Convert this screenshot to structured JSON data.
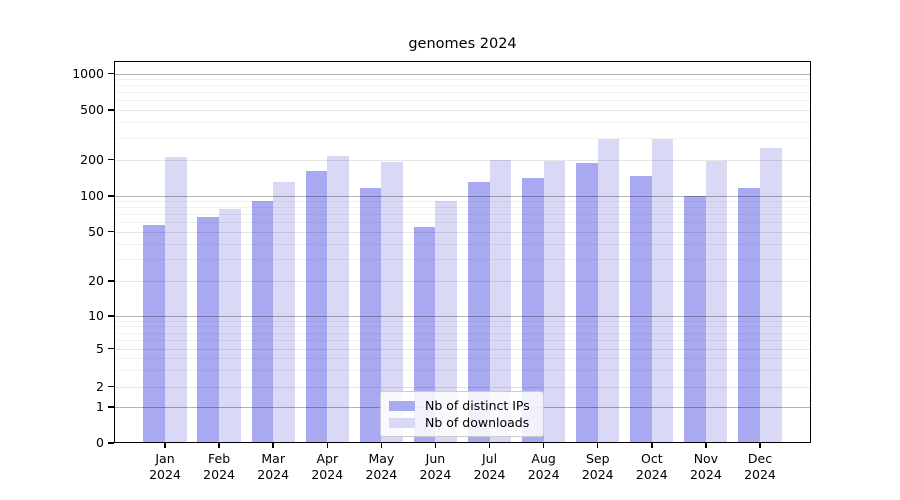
{
  "title": "genomes 2024",
  "legend": {
    "items": [
      {
        "label": "Nb of distinct IPs",
        "color": "#a9a9f2"
      },
      {
        "label": "Nb of downloads",
        "color": "#d9d9f6"
      }
    ]
  },
  "chart_data": {
    "type": "bar",
    "title": "genomes 2024",
    "categories": [
      "Jan",
      "Feb",
      "Mar",
      "Apr",
      "May",
      "Jun",
      "Jul",
      "Aug",
      "Sep",
      "Oct",
      "Nov",
      "Dec"
    ],
    "year": "2024",
    "series": [
      {
        "name": "Nb of distinct IPs",
        "color": "#a9a9f2",
        "values": [
          57,
          67,
          90,
          160,
          117,
          55,
          131,
          140,
          188,
          145,
          100,
          117
        ]
      },
      {
        "name": "Nb of downloads",
        "color": "#d9d9f6",
        "values": [
          210,
          78,
          131,
          213,
          190,
          90,
          198,
          193,
          295,
          290,
          195,
          246
        ]
      }
    ],
    "xlabel": "",
    "ylabel": "",
    "yscale": "symlog",
    "yticks": [
      0,
      1,
      2,
      5,
      10,
      20,
      50,
      100,
      200,
      500,
      1000
    ],
    "minor_yticks": [
      3,
      4,
      6,
      7,
      8,
      9,
      30,
      40,
      60,
      70,
      80,
      90,
      300,
      400,
      600,
      700,
      800,
      900
    ],
    "ylim": [
      0,
      1300
    ],
    "grid": true,
    "legend_position": "lower center"
  }
}
